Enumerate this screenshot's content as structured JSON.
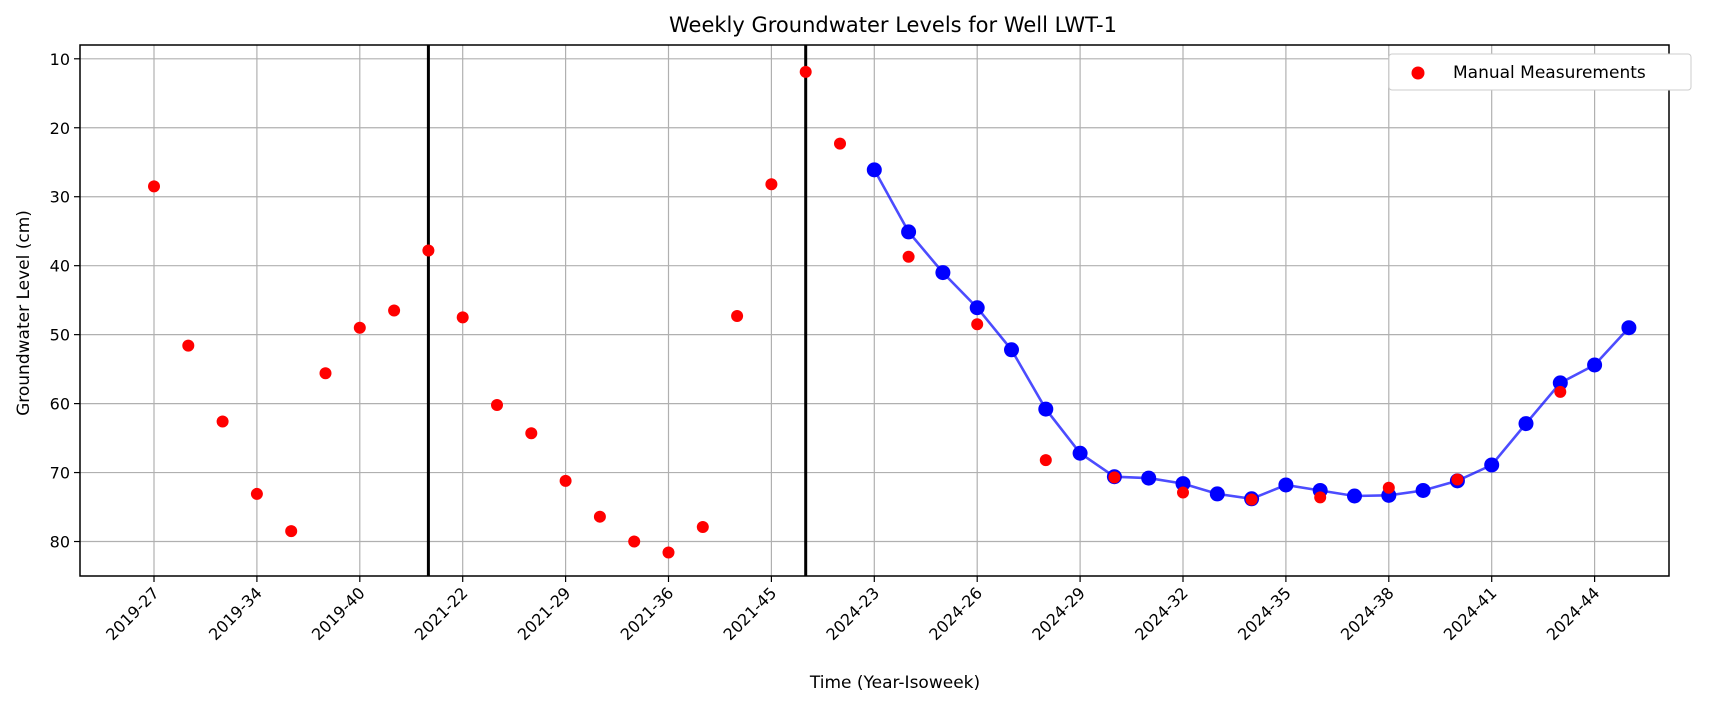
{
  "chart_data": {
    "type": "line",
    "title": "Weekly Groundwater Levels for Well LWT-1",
    "xlabel": "Time (Year-Isoweek)",
    "ylabel": "Groundwater Level (cm)",
    "y_inverted": true,
    "ylim": [
      85,
      8
    ],
    "yticks": [
      10,
      20,
      30,
      40,
      50,
      60,
      70,
      80
    ],
    "grid": true,
    "legend_position": "top-right",
    "x_tick_labels": [
      "2019-27",
      "2019-34",
      "2019-40",
      "2021-22",
      "2021-29",
      "2021-36",
      "2021-45",
      "2024-23",
      "2024-26",
      "2024-29",
      "2024-32",
      "2024-35",
      "2024-38",
      "2024-41",
      "2024-44"
    ],
    "period_separators_after_index": [
      8,
      19
    ],
    "manual_measurements": {
      "name": "Manual Measurements",
      "color": "#ff0000",
      "points": [
        {
          "x": "2019-27",
          "y": 28.5
        },
        {
          "x": "2019-30",
          "y": 51.6
        },
        {
          "x": "2019-32",
          "y": 62.6
        },
        {
          "x": "2019-34",
          "y": 73.1
        },
        {
          "x": "2019-36",
          "y": 78.5
        },
        {
          "x": "2019-38",
          "y": 55.6
        },
        {
          "x": "2019-40",
          "y": 49.0
        },
        {
          "x": "2019-42",
          "y": 46.5
        },
        {
          "x": "2021-20",
          "y": 37.8
        },
        {
          "x": "2021-22",
          "y": 47.5
        },
        {
          "x": "2021-24",
          "y": 60.2
        },
        {
          "x": "2021-26",
          "y": 64.3
        },
        {
          "x": "2021-29",
          "y": 71.2
        },
        {
          "x": "2021-31",
          "y": 76.4
        },
        {
          "x": "2021-33",
          "y": 80.0
        },
        {
          "x": "2021-36",
          "y": 81.6
        },
        {
          "x": "2021-38",
          "y": 77.9
        },
        {
          "x": "2021-42",
          "y": 47.3
        },
        {
          "x": "2021-45",
          "y": 28.2
        },
        {
          "x": "2021-47",
          "y": 11.9
        },
        {
          "x": "2024-22",
          "y": 22.3
        },
        {
          "x": "2024-24",
          "y": 38.7
        },
        {
          "x": "2024-26",
          "y": 48.5
        },
        {
          "x": "2024-28",
          "y": 68.2
        },
        {
          "x": "2024-30",
          "y": 70.7
        },
        {
          "x": "2024-32",
          "y": 72.9
        },
        {
          "x": "2024-34",
          "y": 73.9
        },
        {
          "x": "2024-36",
          "y": 73.6
        },
        {
          "x": "2024-38",
          "y": 72.2
        },
        {
          "x": "2024-40",
          "y": 71.0
        },
        {
          "x": "2024-43",
          "y": 58.3
        }
      ]
    },
    "weekly_series": {
      "color": "#0000ff",
      "points": [
        {
          "x": "2024-23",
          "y": 26.1
        },
        {
          "x": "2024-24",
          "y": 35.1
        },
        {
          "x": "2024-25",
          "y": 41.0
        },
        {
          "x": "2024-26",
          "y": 46.1
        },
        {
          "x": "2024-27",
          "y": 52.2
        },
        {
          "x": "2024-28",
          "y": 60.8
        },
        {
          "x": "2024-29",
          "y": 67.2
        },
        {
          "x": "2024-30",
          "y": 70.6
        },
        {
          "x": "2024-31",
          "y": 70.8
        },
        {
          "x": "2024-32",
          "y": 71.6
        },
        {
          "x": "2024-33",
          "y": 73.1
        },
        {
          "x": "2024-34",
          "y": 73.8
        },
        {
          "x": "2024-35",
          "y": 71.8
        },
        {
          "x": "2024-36",
          "y": 72.6
        },
        {
          "x": "2024-37",
          "y": 73.4
        },
        {
          "x": "2024-38",
          "y": 73.3
        },
        {
          "x": "2024-39",
          "y": 72.6
        },
        {
          "x": "2024-40",
          "y": 71.2
        },
        {
          "x": "2024-41",
          "y": 68.9
        },
        {
          "x": "2024-42",
          "y": 62.9
        },
        {
          "x": "2024-43",
          "y": 57.0
        },
        {
          "x": "2024-44",
          "y": 54.4
        },
        {
          "x": "2024-45",
          "y": 49.0
        }
      ]
    }
  }
}
